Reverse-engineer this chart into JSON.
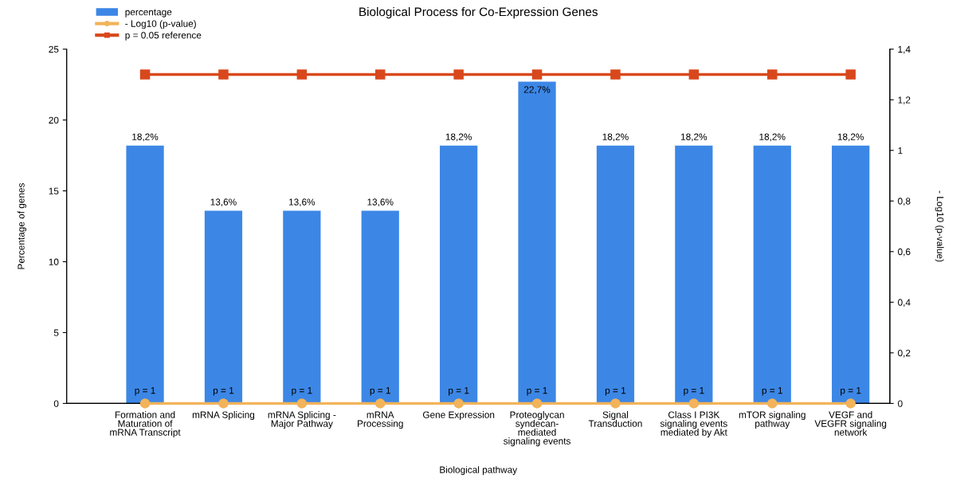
{
  "chart_data": {
    "type": "bar",
    "title": "Biological Process for Co-Expression Genes",
    "xlabel": "Biological pathway",
    "ylabel": "Percentage of genes",
    "y2label": "- Log10 (p-value)",
    "categories": [
      "Formation and\nMaturation of\nmRNA Transcript",
      "mRNA Splicing",
      "mRNA Splicing -\nMajor Pathway",
      "mRNA\nProcessing",
      "Gene Expression",
      "Proteoglycan\nsyndecan-\nmediated\nsignaling events",
      "Signal\nTransduction",
      "Class I PI3K\nsignaling events\nmediated by Akt",
      "mTOR signaling\npathway",
      "VEGF and\nVEGFR signaling\nnetwork"
    ],
    "series": [
      {
        "name": "percentage",
        "color": "#3c87e6",
        "values": [
          18.2,
          13.6,
          13.6,
          13.6,
          18.2,
          22.7,
          18.2,
          18.2,
          18.2,
          18.2
        ],
        "value_labels": [
          "18,2%",
          "13,6%",
          "13,6%",
          "13,6%",
          "18,2%",
          "22,7%",
          "18,2%",
          "18,2%",
          "18,2%",
          "18,2%"
        ]
      },
      {
        "name": "- Log10 (p-value)",
        "type": "line",
        "axis": "y2",
        "marker": "circle",
        "color": "#f2b35a",
        "values": [
          0,
          0,
          0,
          0,
          0,
          0,
          0,
          0,
          0,
          0
        ]
      },
      {
        "name": "p = 0.05 reference",
        "type": "line",
        "axis": "y2",
        "marker": "square",
        "color": "#d9481c",
        "values": [
          1.3,
          1.3,
          1.3,
          1.3,
          1.3,
          1.3,
          1.3,
          1.3,
          1.3,
          1.3
        ]
      }
    ],
    "ylim": [
      0,
      25
    ],
    "yticks": [
      0,
      5,
      10,
      15,
      20,
      25
    ],
    "y2lim": [
      0,
      1.4
    ],
    "y2ticks": [
      0,
      {
        "value": 0.2,
        "label": "0,2"
      },
      {
        "value": 0.4,
        "label": "0,4"
      },
      {
        "value": 0.6,
        "label": "0,6"
      },
      {
        "value": 0.8,
        "label": "0,8"
      },
      1,
      {
        "value": 1.2,
        "label": "1,2"
      },
      {
        "value": 1.4,
        "label": "1,4"
      }
    ],
    "annotations": [
      {
        "text": "p = 1",
        "x": "Formation and\nMaturation of\nmRNA Transcript",
        "y": 0
      },
      {
        "text": "p = 1",
        "x": "mRNA Splicing",
        "y": 0
      },
      {
        "text": "p = 1",
        "x": "mRNA Splicing -\nMajor Pathway",
        "y": 0
      },
      {
        "text": "p = 1",
        "x": "mRNA\nProcessing",
        "y": 0
      },
      {
        "text": "p = 1",
        "x": "Gene Expression",
        "y": 0
      },
      {
        "text": "p = 1",
        "x": "Proteoglycan\nsyndecan-\nmediated\nsignaling events",
        "y": 0
      },
      {
        "text": "p = 1",
        "x": "Signal\nTransduction",
        "y": 0
      },
      {
        "text": "p = 1",
        "x": "Class I PI3K\nsignaling events\nmediated by Akt",
        "y": 0
      },
      {
        "text": "p = 1",
        "x": "mTOR signaling\npathway",
        "y": 0
      },
      {
        "text": "p = 1",
        "x": "VEGF and\nVEGFR signaling\nnetwork",
        "y": 0
      }
    ],
    "grid": false,
    "legend": "top left"
  }
}
